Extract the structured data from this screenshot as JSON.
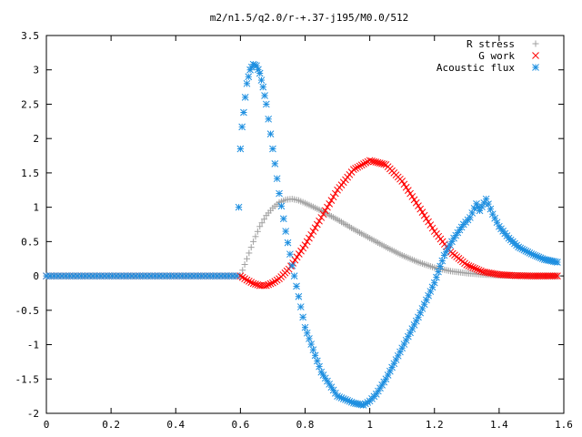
{
  "chart_data": {
    "type": "scatter",
    "title": "m2/n1.5/q2.0/r-+.37-j195/M0.0/512",
    "xlabel": "",
    "ylabel": "",
    "xlim": [
      0,
      1.6
    ],
    "ylim": [
      -2,
      3.5
    ],
    "x_ticks": [
      "0",
      "0.2",
      "0.4",
      "0.6",
      "0.8",
      "1",
      "1.2",
      "1.4",
      "1.6"
    ],
    "y_ticks": [
      "3.5",
      "3",
      "2.5",
      "2",
      "1.5",
      "1",
      "0.5",
      "0",
      "-0.5",
      "-1",
      "-1.5",
      "-2"
    ],
    "grid": false,
    "legend_position": "top-right",
    "series": [
      {
        "name": "R stress",
        "marker": "plus",
        "color": "#a0a0a0",
        "x": [
          0.6,
          0.62,
          0.64,
          0.66,
          0.68,
          0.7,
          0.72,
          0.74,
          0.76,
          0.78,
          0.8,
          0.85,
          0.9,
          0.95,
          1.0,
          1.05,
          1.1,
          1.15,
          1.2,
          1.25,
          1.3,
          1.35,
          1.4,
          1.45,
          1.5,
          1.55,
          1.58
        ],
        "y": [
          0.0,
          0.25,
          0.5,
          0.72,
          0.88,
          0.99,
          1.07,
          1.11,
          1.12,
          1.1,
          1.06,
          0.95,
          0.82,
          0.68,
          0.55,
          0.42,
          0.3,
          0.2,
          0.12,
          0.07,
          0.04,
          0.02,
          0.01,
          0.005,
          0.0,
          0.0,
          0.0
        ]
      },
      {
        "name": "G work",
        "marker": "cross",
        "color": "#ff0000",
        "x": [
          0.6,
          0.62,
          0.64,
          0.66,
          0.68,
          0.7,
          0.72,
          0.75,
          0.8,
          0.85,
          0.9,
          0.95,
          1.0,
          1.05,
          1.1,
          1.15,
          1.2,
          1.25,
          1.3,
          1.35,
          1.4,
          1.45,
          1.5,
          1.55,
          1.58
        ],
        "y": [
          0.0,
          -0.06,
          -0.11,
          -0.14,
          -0.14,
          -0.1,
          -0.04,
          0.1,
          0.45,
          0.85,
          1.25,
          1.55,
          1.68,
          1.62,
          1.38,
          1.02,
          0.65,
          0.35,
          0.16,
          0.06,
          0.02,
          0.005,
          0.0,
          0.0,
          0.0
        ]
      },
      {
        "name": "Acoustic flux",
        "marker": "star",
        "color": "#1e8fe0",
        "x": [
          0.595,
          0.6,
          0.605,
          0.61,
          0.615,
          0.62,
          0.63,
          0.64,
          0.65,
          0.66,
          0.67,
          0.68,
          0.7,
          0.72,
          0.74,
          0.76,
          0.78,
          0.8,
          0.85,
          0.9,
          0.95,
          0.98,
          1.0,
          1.02,
          1.05,
          1.1,
          1.15,
          1.2,
          1.23,
          1.26,
          1.29,
          1.31,
          1.33,
          1.34,
          1.36,
          1.38,
          1.4,
          1.43,
          1.46,
          1.5,
          1.54,
          1.58
        ],
        "y": [
          1.0,
          1.85,
          2.17,
          2.38,
          2.6,
          2.8,
          3.0,
          3.08,
          3.06,
          2.95,
          2.75,
          2.5,
          1.85,
          1.2,
          0.65,
          0.15,
          -0.3,
          -0.75,
          -1.4,
          -1.75,
          -1.85,
          -1.88,
          -1.82,
          -1.72,
          -1.5,
          -1.05,
          -0.6,
          -0.1,
          0.3,
          0.55,
          0.75,
          0.85,
          1.05,
          0.95,
          1.12,
          0.9,
          0.72,
          0.55,
          0.42,
          0.32,
          0.24,
          0.2
        ]
      }
    ]
  }
}
